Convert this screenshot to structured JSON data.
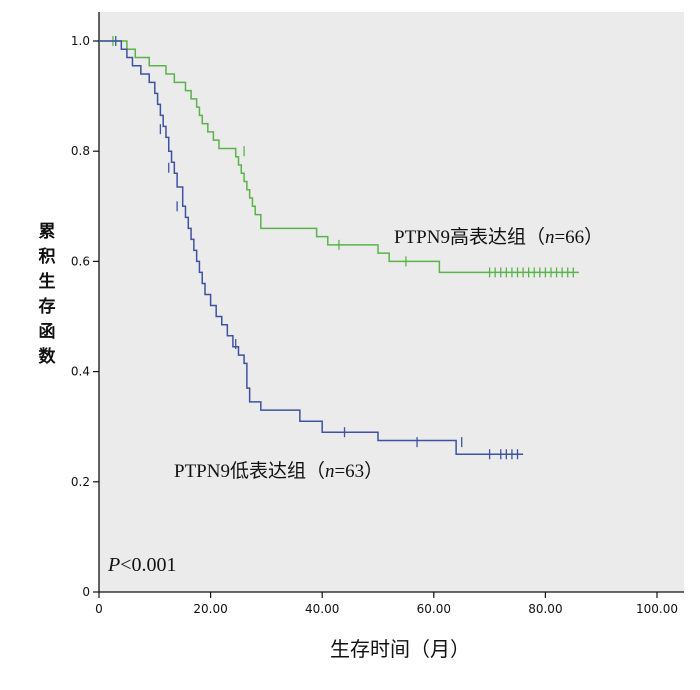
{
  "chart_data": {
    "type": "line",
    "step": true,
    "xlabel": "生存时间（月）",
    "ylabel": "累积生存函数",
    "xlim": [
      0,
      100
    ],
    "ylim": [
      0,
      1.0
    ],
    "x_ticks": [
      "0",
      "20.00",
      "40.00",
      "60.00",
      "80.00",
      "100.00"
    ],
    "y_ticks": [
      "0",
      "0.2",
      "0.4",
      "0.6",
      "0.8",
      "1.0"
    ],
    "grid": false,
    "p_value": {
      "prefix": "P",
      "text": "<0.001"
    },
    "series": [
      {
        "name": "PTPN9高表达组（n=66）",
        "label_parts": {
          "pre": "PTPN9高表达组（",
          "n": "n",
          "post": "=66）"
        },
        "color": "#5ab34a",
        "steps": [
          [
            0,
            1.0
          ],
          [
            5,
            0.985
          ],
          [
            6.5,
            0.97
          ],
          [
            9,
            0.955
          ],
          [
            12,
            0.94
          ],
          [
            13.5,
            0.925
          ],
          [
            15.5,
            0.91
          ],
          [
            16.5,
            0.895
          ],
          [
            17.5,
            0.88
          ],
          [
            18,
            0.865
          ],
          [
            18.5,
            0.85
          ],
          [
            19.5,
            0.835
          ],
          [
            20.5,
            0.82
          ],
          [
            21.5,
            0.805
          ],
          [
            24.5,
            0.79
          ],
          [
            25,
            0.775
          ],
          [
            25.5,
            0.76
          ],
          [
            26,
            0.745
          ],
          [
            26.5,
            0.73
          ],
          [
            27,
            0.715
          ],
          [
            27.5,
            0.7
          ],
          [
            28,
            0.685
          ],
          [
            29,
            0.66
          ],
          [
            39,
            0.645
          ],
          [
            41,
            0.63
          ],
          [
            50,
            0.615
          ],
          [
            52,
            0.6
          ],
          [
            61,
            0.58
          ],
          [
            86,
            0.58
          ]
        ],
        "censored": [
          [
            2.5,
            1.0
          ],
          [
            26,
            0.8
          ],
          [
            43,
            0.63
          ],
          [
            55,
            0.6
          ],
          [
            70,
            0.58
          ],
          [
            71,
            0.58
          ],
          [
            72,
            0.58
          ],
          [
            73,
            0.58
          ],
          [
            74,
            0.58
          ],
          [
            75,
            0.58
          ],
          [
            76,
            0.58
          ],
          [
            77,
            0.58
          ],
          [
            78,
            0.58
          ],
          [
            79,
            0.58
          ],
          [
            80,
            0.58
          ],
          [
            81,
            0.58
          ],
          [
            82,
            0.58
          ],
          [
            83,
            0.58
          ],
          [
            84,
            0.58
          ],
          [
            85,
            0.58
          ]
        ]
      },
      {
        "name": "PTPN9低表达组（n=63）",
        "label_parts": {
          "pre": "PTPN9低表达组（",
          "n": "n",
          "post": "=63）"
        },
        "color": "#3d52a0",
        "steps": [
          [
            0,
            1.0
          ],
          [
            4,
            0.985
          ],
          [
            5,
            0.97
          ],
          [
            6,
            0.955
          ],
          [
            7.5,
            0.94
          ],
          [
            9,
            0.925
          ],
          [
            10,
            0.905
          ],
          [
            10.5,
            0.885
          ],
          [
            11,
            0.865
          ],
          [
            11.5,
            0.845
          ],
          [
            12,
            0.825
          ],
          [
            12.5,
            0.8
          ],
          [
            13,
            0.78
          ],
          [
            13.5,
            0.76
          ],
          [
            14,
            0.735
          ],
          [
            15,
            0.7
          ],
          [
            15.5,
            0.68
          ],
          [
            16,
            0.66
          ],
          [
            16.5,
            0.64
          ],
          [
            17,
            0.62
          ],
          [
            17.5,
            0.6
          ],
          [
            18,
            0.58
          ],
          [
            18.5,
            0.56
          ],
          [
            19,
            0.54
          ],
          [
            20,
            0.52
          ],
          [
            21,
            0.5
          ],
          [
            22,
            0.485
          ],
          [
            23,
            0.465
          ],
          [
            24,
            0.445
          ],
          [
            25,
            0.43
          ],
          [
            26,
            0.415
          ],
          [
            26.5,
            0.37
          ],
          [
            27,
            0.345
          ],
          [
            29,
            0.33
          ],
          [
            36,
            0.31
          ],
          [
            40,
            0.29
          ],
          [
            50,
            0.275
          ],
          [
            64,
            0.25
          ],
          [
            76,
            0.25
          ]
        ],
        "censored": [
          [
            3,
            1.0
          ],
          [
            11,
            0.84
          ],
          [
            12.5,
            0.77
          ],
          [
            14,
            0.7
          ],
          [
            24.5,
            0.45
          ],
          [
            44,
            0.29
          ],
          [
            57,
            0.272
          ],
          [
            65,
            0.272
          ],
          [
            70,
            0.25
          ],
          [
            72,
            0.25
          ],
          [
            73,
            0.25
          ],
          [
            74,
            0.25
          ],
          [
            75,
            0.25
          ]
        ]
      }
    ]
  }
}
